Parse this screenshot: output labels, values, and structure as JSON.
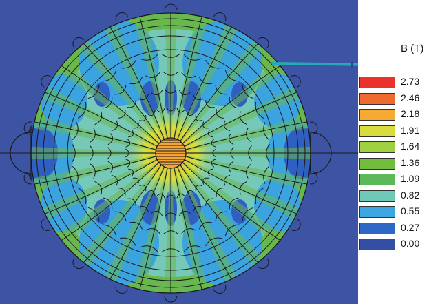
{
  "legend": {
    "title": "B (T)",
    "entries": [
      {
        "label": "2.73",
        "color": "#e8322a"
      },
      {
        "label": "2.46",
        "color": "#ef6a2e"
      },
      {
        "label": "2.18",
        "color": "#f6aa33"
      },
      {
        "label": "1.91",
        "color": "#d9dd3c"
      },
      {
        "label": "1.64",
        "color": "#9fd040"
      },
      {
        "label": "1.36",
        "color": "#72bd3e"
      },
      {
        "label": "1.09",
        "color": "#5cb85a"
      },
      {
        "label": "0.82",
        "color": "#70c8b6"
      },
      {
        "label": "0.55",
        "color": "#3ca6e3"
      },
      {
        "label": "0.27",
        "color": "#2f67c7"
      },
      {
        "label": "0.00",
        "color": "#344ea3"
      }
    ]
  },
  "colors": {
    "background": "#3c54a3",
    "outer_ring": "#69b84f",
    "mid_field": "#76c9b8",
    "low_field": "#3aa3e0",
    "lowest_field": "#2f5fc0",
    "core_center": "#f2a437",
    "core_glow": "#d7dc42",
    "mesh_lines": "#1a1a1a",
    "probe_line": "#27a9b5"
  }
}
